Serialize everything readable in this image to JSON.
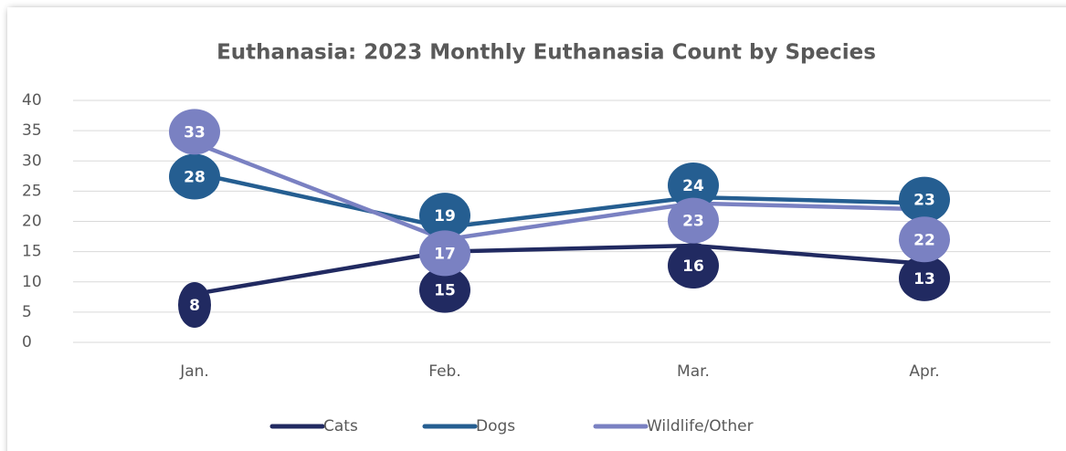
{
  "chart_data": {
    "type": "line",
    "title": "Euthanasia: 2023 Monthly Euthanasia Count by Species",
    "categories": [
      "Jan.",
      "Feb.",
      "Mar.",
      "Apr."
    ],
    "series": [
      {
        "name": "Cats",
        "color": "#212a61",
        "values": [
          8,
          15,
          16,
          13
        ]
      },
      {
        "name": "Dogs",
        "color": "#255e91",
        "values": [
          28,
          19,
          24,
          23
        ]
      },
      {
        "name": "Wildlife/Other",
        "color": "#7a81c2",
        "values": [
          33,
          17,
          23,
          22
        ]
      }
    ],
    "ylim": [
      0,
      40
    ],
    "yticks": [
      0,
      5,
      10,
      15,
      20,
      25,
      30,
      35,
      40
    ],
    "grid": true,
    "legend": "bottom"
  }
}
